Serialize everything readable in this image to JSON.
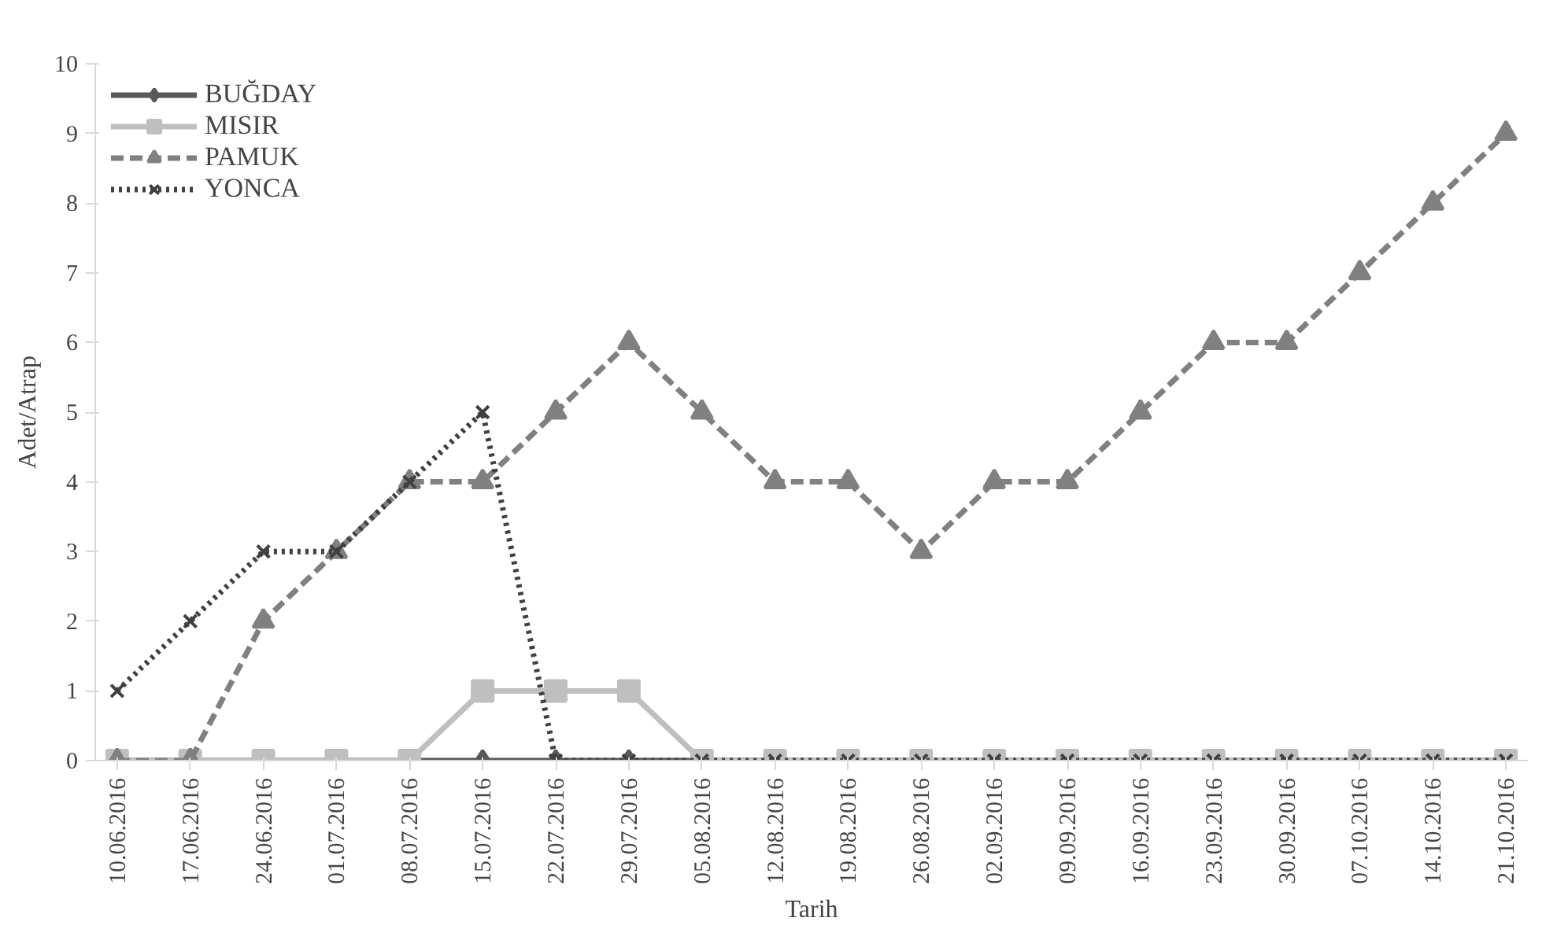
{
  "chart_data": {
    "type": "line",
    "xlabel": "Tarih",
    "ylabel": "Adet/Atrap",
    "categories": [
      "10.06.2016",
      "17.06.2016",
      "24.06.2016",
      "01.07.2016",
      "08.07.2016",
      "15.07.2016",
      "22.07.2016",
      "29.07.2016",
      "05.08.2016",
      "12.08.2016",
      "19.08.2016",
      "26.08.2016",
      "02.09.2016",
      "09.09.2016",
      "16.09.2016",
      "23.09.2016",
      "30.09.2016",
      "07.10.2016",
      "14.10.2016",
      "21.10.2016"
    ],
    "series": [
      {
        "name": "BUĞDAY",
        "color": "#595959",
        "marker": "diamond",
        "line_style": "solid",
        "values": [
          0,
          0,
          0,
          0,
          0,
          0,
          0,
          0,
          0,
          0,
          0,
          0,
          0,
          0,
          0,
          0,
          0,
          0,
          0,
          0
        ]
      },
      {
        "name": "MISIR",
        "color": "#bfbfbf",
        "marker": "square",
        "line_style": "solid",
        "values": [
          0,
          0,
          0,
          0,
          0,
          1,
          1,
          1,
          0,
          0,
          0,
          0,
          0,
          0,
          0,
          0,
          0,
          0,
          0,
          0
        ]
      },
      {
        "name": "PAMUK",
        "color": "#808080",
        "marker": "triangle",
        "line_style": "dashed",
        "values": [
          0,
          0,
          2,
          3,
          4,
          4,
          5,
          6,
          5,
          4,
          4,
          3,
          4,
          4,
          5,
          6,
          6,
          7,
          8,
          9
        ]
      },
      {
        "name": "YONCA",
        "color": "#404040",
        "marker": "cross",
        "line_style": "dotted",
        "values": [
          1,
          2,
          3,
          3,
          4,
          5,
          0,
          0,
          0,
          0,
          0,
          0,
          0,
          0,
          0,
          0,
          0,
          0,
          0,
          0
        ]
      }
    ],
    "ylim": [
      0,
      10
    ],
    "yticks": [
      0,
      1,
      2,
      3,
      4,
      5,
      6,
      7,
      8,
      9,
      10
    ],
    "grid": false,
    "legend": "top left"
  }
}
